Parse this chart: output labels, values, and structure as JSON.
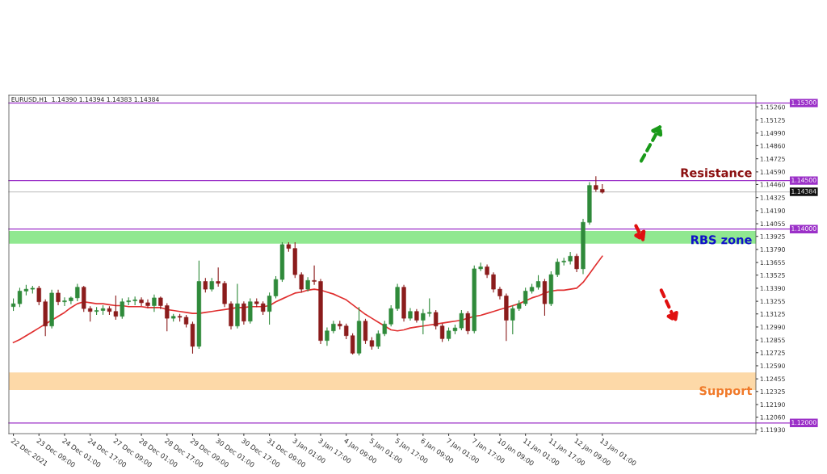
{
  "chart_data": {
    "type": "candlestick",
    "title": "EURUSD,H1  1.14390 1.14394 1.14383 1.14384",
    "categories": [
      "22 Dec 2021",
      null,
      null,
      null,
      "23 Dec 09:00",
      null,
      null,
      null,
      "24 Dec 01:00",
      null,
      null,
      null,
      "24 Dec 17:00",
      null,
      null,
      null,
      "27 Dec 09:00",
      null,
      null,
      null,
      "28 Dec 01:00",
      null,
      null,
      null,
      "28 Dec 17:00",
      null,
      null,
      null,
      "29 Dec 09:00",
      null,
      null,
      null,
      "30 Dec 01:00",
      null,
      null,
      null,
      "30 Dec 17:00",
      null,
      null,
      null,
      "31 Dec 09:00",
      null,
      null,
      null,
      "3 Jan 01:00",
      null,
      null,
      null,
      "3 Jan 17:00",
      null,
      null,
      null,
      "4 Jan 09:00",
      null,
      null,
      null,
      "5 Jan 01:00",
      null,
      null,
      null,
      "5 Jan 17:00",
      null,
      null,
      null,
      "6 Jan 09:00",
      null,
      null,
      null,
      "7 Jan 01:00",
      null,
      null,
      null,
      "7 Jan 17:00",
      null,
      null,
      null,
      "10 Jan 09:00",
      null,
      null,
      null,
      "11 Jan 01:00",
      null,
      null,
      null,
      "11 Jan 17:00",
      null,
      null,
      null,
      "12 Jan 09:00",
      null,
      null,
      null,
      "13 Jan 01:00"
    ],
    "series": [
      {
        "ohlc": [
          [
            1.132,
            1.1328,
            1.1316,
            1.1323
          ],
          [
            1.1323,
            1.1339,
            1.132,
            1.1336
          ],
          [
            1.1336,
            1.1342,
            1.1332,
            1.1338
          ],
          [
            1.1338,
            1.1341,
            1.1334,
            1.1339
          ],
          [
            1.1339,
            1.1341,
            1.1322,
            1.1325
          ],
          [
            1.1325,
            1.1327,
            1.129,
            1.13
          ],
          [
            1.13,
            1.1337,
            1.1298,
            1.1334
          ],
          [
            1.1334,
            1.1337,
            1.1322,
            1.1325
          ],
          [
            1.1325,
            1.1329,
            1.1321,
            1.1326
          ],
          [
            1.1326,
            1.133,
            1.1323,
            1.1329
          ],
          [
            1.1329,
            1.1343,
            1.1326,
            1.134
          ],
          [
            1.134,
            1.1341,
            1.1315,
            1.1318
          ],
          [
            1.1318,
            1.132,
            1.1305,
            1.1315
          ],
          [
            1.1315,
            1.1319,
            1.1312,
            1.1316
          ],
          [
            1.1316,
            1.1321,
            1.1312,
            1.1318
          ],
          [
            1.1318,
            1.132,
            1.1312,
            1.1315
          ],
          [
            1.1315,
            1.1331,
            1.1307,
            1.131
          ],
          [
            1.131,
            1.1328,
            1.1308,
            1.1325
          ],
          [
            1.1325,
            1.1329,
            1.1322,
            1.1326
          ],
          [
            1.1326,
            1.133,
            1.1322,
            1.1327
          ],
          [
            1.1327,
            1.1329,
            1.1321,
            1.1324
          ],
          [
            1.1324,
            1.1327,
            1.1319,
            1.1321
          ],
          [
            1.1321,
            1.1332,
            1.1315,
            1.1329
          ],
          [
            1.1329,
            1.133,
            1.1318,
            1.1321
          ],
          [
            1.1321,
            1.1323,
            1.1295,
            1.1308
          ],
          [
            1.1308,
            1.1312,
            1.1305,
            1.131
          ],
          [
            1.131,
            1.1312,
            1.1305,
            1.1309
          ],
          [
            1.1309,
            1.1311,
            1.1299,
            1.1302
          ],
          [
            1.1302,
            1.1304,
            1.1272,
            1.1279
          ],
          [
            1.1279,
            1.1367,
            1.1277,
            1.1346
          ],
          [
            1.1346,
            1.1349,
            1.1335,
            1.1338
          ],
          [
            1.1338,
            1.1349,
            1.1336,
            1.1346
          ],
          [
            1.1346,
            1.136,
            1.1341,
            1.1344
          ],
          [
            1.1344,
            1.1346,
            1.132,
            1.1323
          ],
          [
            1.1323,
            1.1325,
            1.1297,
            1.13
          ],
          [
            1.13,
            1.1343,
            1.1298,
            1.1323
          ],
          [
            1.1323,
            1.1325,
            1.1302,
            1.1305
          ],
          [
            1.1305,
            1.1328,
            1.1303,
            1.1325
          ],
          [
            1.1325,
            1.1328,
            1.132,
            1.1323
          ],
          [
            1.1323,
            1.1325,
            1.1312,
            1.1315
          ],
          [
            1.1315,
            1.1334,
            1.1302,
            1.1331
          ],
          [
            1.1331,
            1.1351,
            1.1329,
            1.1348
          ],
          [
            1.1348,
            1.1386,
            1.1346,
            1.1384
          ],
          [
            1.1384,
            1.1386,
            1.1377,
            1.138
          ],
          [
            1.138,
            1.1386,
            1.135,
            1.1353
          ],
          [
            1.1353,
            1.1355,
            1.1335,
            1.1338
          ],
          [
            1.1338,
            1.135,
            1.1336,
            1.1347
          ],
          [
            1.1347,
            1.1362,
            1.1343,
            1.1346
          ],
          [
            1.1346,
            1.1348,
            1.1282,
            1.1285
          ],
          [
            1.1285,
            1.1298,
            1.128,
            1.1295
          ],
          [
            1.1295,
            1.1305,
            1.1293,
            1.1302
          ],
          [
            1.1302,
            1.1305,
            1.1297,
            1.13
          ],
          [
            1.13,
            1.1302,
            1.1287,
            1.129
          ],
          [
            1.129,
            1.1292,
            1.1271,
            1.1272
          ],
          [
            1.1272,
            1.1319,
            1.127,
            1.1305
          ],
          [
            1.1305,
            1.1307,
            1.1282,
            1.1285
          ],
          [
            1.1285,
            1.1288,
            1.1276,
            1.1279
          ],
          [
            1.1279,
            1.1295,
            1.1277,
            1.1292
          ],
          [
            1.1292,
            1.1305,
            1.129,
            1.1302
          ],
          [
            1.1302,
            1.1321,
            1.13,
            1.1318
          ],
          [
            1.1318,
            1.1343,
            1.1316,
            1.134
          ],
          [
            1.134,
            1.1342,
            1.1305,
            1.1308
          ],
          [
            1.1308,
            1.1318,
            1.1306,
            1.1315
          ],
          [
            1.1315,
            1.1317,
            1.1304,
            1.1306
          ],
          [
            1.1306,
            1.1317,
            1.1292,
            1.1313
          ],
          [
            1.1313,
            1.1328,
            1.131,
            1.1314
          ],
          [
            1.1314,
            1.1316,
            1.1297,
            1.13
          ],
          [
            1.13,
            1.1302,
            1.1284,
            1.1287
          ],
          [
            1.1287,
            1.1298,
            1.1285,
            1.1295
          ],
          [
            1.1295,
            1.1301,
            1.1292,
            1.1298
          ],
          [
            1.1298,
            1.1316,
            1.1296,
            1.1313
          ],
          [
            1.1313,
            1.1315,
            1.1292,
            1.1295
          ],
          [
            1.1295,
            1.1362,
            1.1293,
            1.1359
          ],
          [
            1.1359,
            1.1365,
            1.1357,
            1.1361
          ],
          [
            1.1361,
            1.1363,
            1.135,
            1.1353
          ],
          [
            1.1353,
            1.1355,
            1.1335,
            1.1338
          ],
          [
            1.1338,
            1.134,
            1.1328,
            1.1331
          ],
          [
            1.1331,
            1.1333,
            1.1285,
            1.1306
          ],
          [
            1.1306,
            1.1321,
            1.1292,
            1.1318
          ],
          [
            1.1318,
            1.1326,
            1.1316,
            1.1323
          ],
          [
            1.1323,
            1.1339,
            1.1321,
            1.1336
          ],
          [
            1.1336,
            1.1343,
            1.1334,
            1.134
          ],
          [
            1.134,
            1.1352,
            1.1338,
            1.1346
          ],
          [
            1.1346,
            1.1348,
            1.1311,
            1.1323
          ],
          [
            1.1323,
            1.1356,
            1.1321,
            1.1353
          ],
          [
            1.1353,
            1.1369,
            1.1351,
            1.1366
          ],
          [
            1.1366,
            1.137,
            1.1363,
            1.1367
          ],
          [
            1.1367,
            1.1376,
            1.1364,
            1.1372
          ],
          [
            1.1372,
            1.1374,
            1.1356,
            1.1359
          ],
          [
            1.1359,
            1.141,
            1.1354,
            1.1407
          ],
          [
            1.1407,
            1.1448,
            1.1405,
            1.1445
          ],
          [
            1.1445,
            1.1454,
            1.1439,
            1.1441
          ],
          [
            1.1441,
            1.1446,
            1.1437,
            1.1438
          ]
        ]
      },
      {
        "type": "line",
        "color": "#e03030",
        "values": [
          1.1283,
          1.1286,
          1.129,
          1.1294,
          1.1298,
          1.1302,
          1.1306,
          1.131,
          1.1314,
          1.1319,
          1.1323,
          1.1325,
          1.1324,
          1.1323,
          1.1323,
          1.1322,
          1.1321,
          1.1321,
          1.132,
          1.132,
          1.132,
          1.1319,
          1.1319,
          1.1319,
          1.1317,
          1.1316,
          1.1315,
          1.1314,
          1.1313,
          1.1313,
          1.1314,
          1.1315,
          1.1316,
          1.1317,
          1.1318,
          1.1319,
          1.1319,
          1.132,
          1.132,
          1.132,
          1.1321,
          1.1325,
          1.1328,
          1.1331,
          1.1334,
          1.1335,
          1.1337,
          1.1338,
          1.1337,
          1.1335,
          1.1333,
          1.133,
          1.1327,
          1.1322,
          1.1317,
          1.1312,
          1.1308,
          1.1304,
          1.13,
          1.1296,
          1.1295,
          1.1296,
          1.1298,
          1.1299,
          1.13,
          1.1301,
          1.1302,
          1.1303,
          1.1304,
          1.1305,
          1.1306,
          1.1308,
          1.131,
          1.1311,
          1.1313,
          1.1315,
          1.1317,
          1.1319,
          1.1321,
          1.1323,
          1.1326,
          1.1329,
          1.1331,
          1.1334,
          1.1336,
          1.1337,
          1.1337,
          1.1338,
          1.1339,
          1.1345,
          1.1354,
          1.1363,
          1.1372
        ]
      }
    ],
    "ylim": [
      1.1189,
      1.1538
    ],
    "yticks": [
      {
        "value": 1.1526,
        "label": "1.15260"
      },
      {
        "value": 1.15125,
        "label": "1.15125"
      },
      {
        "value": 1.1499,
        "label": "1.14990"
      },
      {
        "value": 1.1486,
        "label": "1.14860"
      },
      {
        "value": 1.14725,
        "label": "1.14725"
      },
      {
        "value": 1.1459,
        "label": "1.14590"
      },
      {
        "value": 1.1446,
        "label": "1.14460"
      },
      {
        "value": 1.14325,
        "label": "1.14325"
      },
      {
        "value": 1.1419,
        "label": "1.14190"
      },
      {
        "value": 1.14055,
        "label": "1.14055"
      },
      {
        "value": 1.13925,
        "label": "1.13925"
      },
      {
        "value": 1.1379,
        "label": "1.13790"
      },
      {
        "value": 1.13655,
        "label": "1.13655"
      },
      {
        "value": 1.13525,
        "label": "1.13525"
      },
      {
        "value": 1.1339,
        "label": "1.13390"
      },
      {
        "value": 1.13255,
        "label": "1.13255"
      },
      {
        "value": 1.13125,
        "label": "1.13125"
      },
      {
        "value": 1.1299,
        "label": "1.12990"
      },
      {
        "value": 1.12855,
        "label": "1.12855"
      },
      {
        "value": 1.12725,
        "label": "1.12725"
      },
      {
        "value": 1.1259,
        "label": "1.12590"
      },
      {
        "value": 1.12455,
        "label": "1.12455"
      },
      {
        "value": 1.12325,
        "label": "1.12325"
      },
      {
        "value": 1.1219,
        "label": "1.12190"
      },
      {
        "value": 1.1206,
        "label": "1.12060"
      },
      {
        "value": 1.1193,
        "label": "1.11930"
      }
    ],
    "ref_lines": [
      {
        "axis": "y",
        "value": 1.153,
        "label": "1.15300",
        "color": "#9b30c8"
      },
      {
        "axis": "y",
        "value": 1.145,
        "label": "1.14500",
        "color": "#9b30c8"
      },
      {
        "axis": "y",
        "value": 1.14384,
        "label": "1.14384",
        "color": "#c8c8c8"
      },
      {
        "axis": "y",
        "value": 1.14,
        "label": "1.14000",
        "color": "#9b30c8"
      },
      {
        "axis": "y",
        "value": 1.12,
        "label": "1.12000",
        "color": "#9b30c8"
      }
    ],
    "bands": [
      {
        "axis": "y",
        "from": 1.1385,
        "to": 1.1398,
        "color": "#90e890"
      },
      {
        "axis": "y",
        "from": 1.1234,
        "to": 1.1252,
        "color": "#fdd9a8"
      }
    ],
    "annotations": [
      "Resistance",
      "RBS zone",
      "Support"
    ],
    "grid": false,
    "legend": false
  }
}
